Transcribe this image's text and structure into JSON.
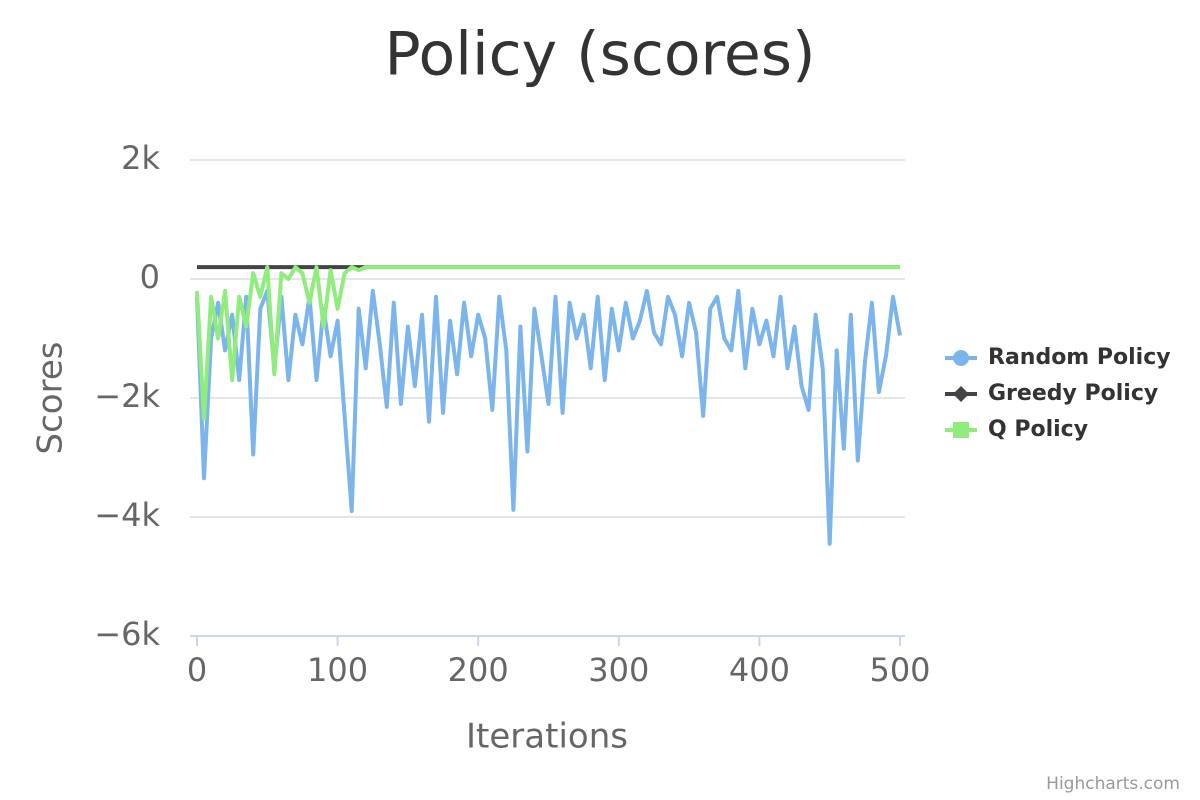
{
  "chart_data": {
    "type": "line",
    "title": "Policy (scores)",
    "x_label": "Iterations",
    "y_label": "Scores",
    "credits": "Highcharts.com",
    "x": [
      0,
      5,
      10,
      15,
      20,
      25,
      30,
      35,
      40,
      45,
      50,
      55,
      60,
      65,
      70,
      75,
      80,
      85,
      90,
      95,
      100,
      105,
      110,
      115,
      120,
      125,
      130,
      135,
      140,
      145,
      150,
      155,
      160,
      165,
      170,
      175,
      180,
      185,
      190,
      195,
      200,
      205,
      210,
      215,
      220,
      225,
      230,
      235,
      240,
      245,
      250,
      255,
      260,
      265,
      270,
      275,
      280,
      285,
      290,
      295,
      300,
      305,
      310,
      315,
      320,
      325,
      330,
      335,
      340,
      345,
      350,
      355,
      360,
      365,
      370,
      375,
      380,
      385,
      390,
      395,
      400,
      405,
      410,
      415,
      420,
      425,
      430,
      435,
      440,
      445,
      450,
      455,
      460,
      465,
      470,
      475,
      480,
      485,
      490,
      495,
      500
    ],
    "series": [
      {
        "name": "Random Policy",
        "color": "#7cb5ec",
        "marker": "circle",
        "values": [
          -300,
          -3350,
          -1000,
          -400,
          -1200,
          -600,
          -1700,
          -300,
          -2950,
          -500,
          -200,
          -1500,
          -300,
          -1700,
          -600,
          -1100,
          -300,
          -1700,
          -500,
          -1300,
          -700,
          -2300,
          -3900,
          -500,
          -1500,
          -200,
          -1100,
          -2150,
          -400,
          -2100,
          -800,
          -1800,
          -600,
          -2400,
          -300,
          -2250,
          -700,
          -1600,
          -400,
          -1300,
          -600,
          -1000,
          -2200,
          -300,
          -1200,
          -3880,
          -800,
          -2900,
          -500,
          -1300,
          -2100,
          -300,
          -2250,
          -400,
          -1000,
          -600,
          -1500,
          -300,
          -1700,
          -500,
          -1200,
          -400,
          -1000,
          -700,
          -200,
          -900,
          -1100,
          -300,
          -600,
          -1300,
          -400,
          -900,
          -2300,
          -500,
          -300,
          -1000,
          -1200,
          -200,
          -1500,
          -500,
          -1100,
          -700,
          -1300,
          -300,
          -1500,
          -800,
          -1800,
          -2200,
          -600,
          -1500,
          -4450,
          -1200,
          -2850,
          -600,
          -3050,
          -1400,
          -400,
          -1900,
          -1300,
          -300,
          -950
        ]
      },
      {
        "name": "Greedy Policy",
        "color": "#434348",
        "marker": "diamond",
        "values": [
          200,
          200,
          200,
          200,
          200,
          200,
          200,
          200,
          200,
          200,
          200,
          200,
          200,
          200,
          200,
          200,
          200,
          200,
          200,
          200,
          200,
          200,
          200,
          200,
          200,
          200,
          200,
          200,
          200,
          200,
          200,
          200,
          200,
          200,
          200,
          200,
          200,
          200,
          200,
          200,
          200,
          200,
          200,
          200,
          200,
          200,
          200,
          200,
          200,
          200,
          200,
          200,
          200,
          200,
          200,
          200,
          200,
          200,
          200,
          200,
          200,
          200,
          200,
          200,
          200,
          200,
          200,
          200,
          200,
          200,
          200,
          200,
          200,
          200,
          200,
          200,
          200,
          200,
          200,
          200,
          200,
          200,
          200,
          200,
          200,
          200,
          200,
          200,
          200,
          200,
          200,
          200,
          200,
          200,
          200,
          200,
          200,
          200,
          200,
          200,
          200
        ]
      },
      {
        "name": "Q Policy",
        "color": "#90ed7d",
        "marker": "square",
        "values": [
          -200,
          -2350,
          -300,
          -1000,
          -200,
          -1700,
          -300,
          -800,
          100,
          -300,
          200,
          -1600,
          100,
          0,
          200,
          100,
          -400,
          200,
          -800,
          150,
          -500,
          100,
          200,
          150,
          200,
          200,
          200,
          200,
          200,
          200,
          200,
          200,
          200,
          200,
          200,
          200,
          200,
          200,
          200,
          200,
          200,
          200,
          200,
          200,
          200,
          200,
          200,
          200,
          200,
          200,
          200,
          200,
          200,
          200,
          200,
          200,
          200,
          200,
          200,
          200,
          200,
          200,
          200,
          200,
          200,
          200,
          200,
          200,
          200,
          200,
          200,
          200,
          200,
          200,
          200,
          200,
          200,
          200,
          200,
          200,
          200,
          200,
          200,
          200,
          200,
          200,
          200,
          200,
          200,
          200,
          200,
          200,
          200,
          200,
          200,
          200,
          200,
          200,
          200,
          200,
          200
        ]
      }
    ],
    "xlim": [
      0,
      500
    ],
    "xticks": [
      0,
      100,
      200,
      300,
      400,
      500
    ],
    "ylim": [
      -6000,
      2000
    ],
    "yticks": [
      {
        "value": -6000,
        "label": "−6k"
      },
      {
        "value": -4000,
        "label": "−4k"
      },
      {
        "value": -2000,
        "label": "−2k"
      },
      0,
      {
        "value": 2000,
        "label": "2k"
      }
    ],
    "grid": true,
    "legend": "right"
  }
}
